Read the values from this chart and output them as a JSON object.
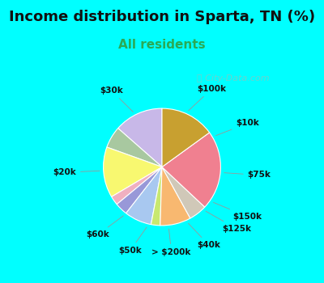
{
  "title": "Income distribution in Sparta, TN (%)",
  "subtitle": "All residents",
  "labels": [
    "$100k",
    "$10k",
    "$75k",
    "$150k",
    "$125k",
    "$40k",
    "> $200k",
    "$50k",
    "$60k",
    "$20k",
    "$30k"
  ],
  "sizes": [
    13.5,
    6.0,
    14.0,
    2.5,
    3.5,
    7.5,
    2.5,
    8.5,
    5.0,
    22.0,
    15.0
  ],
  "colors": [
    "#c8b8e8",
    "#a8c8a0",
    "#f8f870",
    "#f0b0c0",
    "#9898d8",
    "#a8c8f0",
    "#c8e870",
    "#f8b870",
    "#d0c8b8",
    "#f08090",
    "#c8a030"
  ],
  "background_color": "#00ffff",
  "chart_bg": "#dff5e8",
  "title_fontsize": 13,
  "subtitle_fontsize": 11,
  "subtitle_color": "#2aaa55",
  "label_fontsize": 7.5,
  "startangle": 90
}
